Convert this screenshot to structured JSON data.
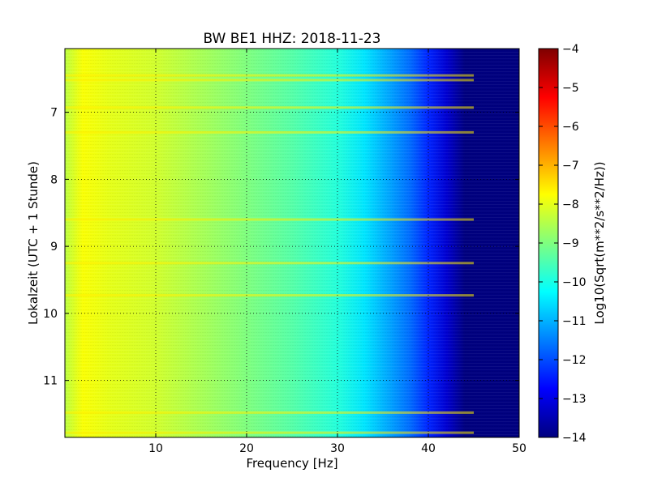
{
  "chart_data": {
    "type": "heatmap",
    "title": "BW BE1 HHZ: 2018-11-23",
    "xlabel": "Frequency [Hz]",
    "ylabel": "Lokalzeit (UTC + 1 Stunde)",
    "xlim": [
      0,
      50
    ],
    "ylim": [
      11.85,
      6.05
    ],
    "x_ticks": [
      10,
      20,
      30,
      40,
      50
    ],
    "y_ticks": [
      7,
      8,
      9,
      10,
      11
    ],
    "grid": true,
    "colorbar": {
      "label": "Log10(Sqrt(m**2/s**2/Hz))",
      "range": [
        -14,
        -4
      ],
      "ticks": [
        -4,
        -5,
        -6,
        -7,
        -8,
        -9,
        -10,
        -11,
        -12,
        -13,
        -14
      ],
      "colormap": "jet"
    },
    "profile": {
      "frequency_hz": [
        0,
        2,
        5,
        10,
        15,
        20,
        25,
        30,
        33,
        36,
        38,
        40,
        42,
        44,
        46,
        50
      ],
      "log10_amplitude": [
        -8.4,
        -7.8,
        -8.0,
        -8.2,
        -8.6,
        -9.0,
        -9.4,
        -9.9,
        -10.5,
        -11.2,
        -11.7,
        -12.4,
        -13.2,
        -14.0,
        -14.0,
        -14.0
      ]
    },
    "horizontal_bands_hours": [
      6.45,
      6.52,
      6.93,
      7.3,
      8.6,
      9.25,
      9.73,
      11.48,
      11.78
    ],
    "colors": {
      "jet_stops": [
        "#00007f",
        "#0000ff",
        "#007fff",
        "#00ffff",
        "#7fff7f",
        "#ffff00",
        "#ff7f00",
        "#ff0000",
        "#7f0000"
      ]
    }
  }
}
